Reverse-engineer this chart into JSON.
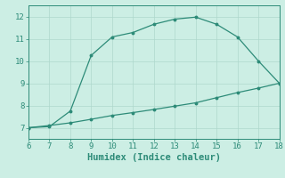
{
  "xlabel": "Humidex (Indice chaleur)",
  "line1_x": [
    6,
    7,
    8,
    9,
    10,
    11,
    12,
    13,
    14,
    15,
    16,
    17,
    18
  ],
  "line1_y": [
    7.0,
    7.05,
    7.75,
    10.25,
    11.08,
    11.28,
    11.65,
    11.88,
    11.97,
    11.65,
    11.08,
    10.0,
    9.0
  ],
  "line2_x": [
    6,
    7,
    8,
    9,
    10,
    11,
    12,
    13,
    14,
    15,
    16,
    17,
    18
  ],
  "line2_y": [
    7.0,
    7.1,
    7.22,
    7.38,
    7.55,
    7.68,
    7.82,
    7.97,
    8.12,
    8.35,
    8.58,
    8.78,
    9.0
  ],
  "line_color": "#2d8b78",
  "bg_color": "#cceee4",
  "grid_color": "#aed8cc",
  "xlim": [
    6,
    18
  ],
  "ylim": [
    6.5,
    12.5
  ],
  "xticks": [
    6,
    7,
    8,
    9,
    10,
    11,
    12,
    13,
    14,
    15,
    16,
    17,
    18
  ],
  "yticks": [
    7,
    8,
    9,
    10,
    11,
    12
  ],
  "tick_fontsize": 6.5,
  "xlabel_fontsize": 7.5,
  "markersize": 2.0,
  "linewidth": 0.9
}
